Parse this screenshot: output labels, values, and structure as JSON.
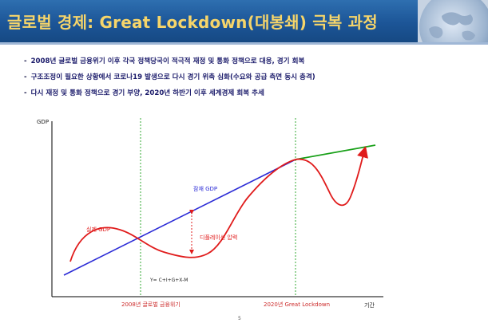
{
  "slide": {
    "title": "글로벌 경제: Great Lockdown(대봉쇄) 극복 과정",
    "bullets": [
      "2008년 글로벌 금융위기 이후 각국 정책당국이 적극적 재정 및 통화 정책으로 대응, 경기 회복",
      "구조조정이 필요한 상황에서 코로나19 발생으로 다시 경기 위축 심화(수요와 공급 측면 동시 충격)",
      "다시 재정 및 통화 정책으로 경기 부양, 2020년 하반기 이후 세계경제 회복 추세"
    ],
    "bullet_marker": "-",
    "page_number": "5"
  },
  "diagram": {
    "y_axis_label": "GDP",
    "x_axis_label": "기간",
    "potential_gdp_label": "잠재 GDP",
    "actual_gdp_label": "실제  GDP",
    "deflation_label": "디플레이션 압력",
    "formula": "Y= C+I+G+X-M",
    "event_2008_label": "2008년 글로벌 금융위기",
    "event_2020_label": "2020년 Great Lockdown",
    "colors": {
      "potential_gdp": "#2b2bd6",
      "actual_gdp": "#e01b1b",
      "recovery": "#18a018",
      "guide_lines": "#33aa33",
      "event_labels": "#cc2a2a"
    }
  }
}
